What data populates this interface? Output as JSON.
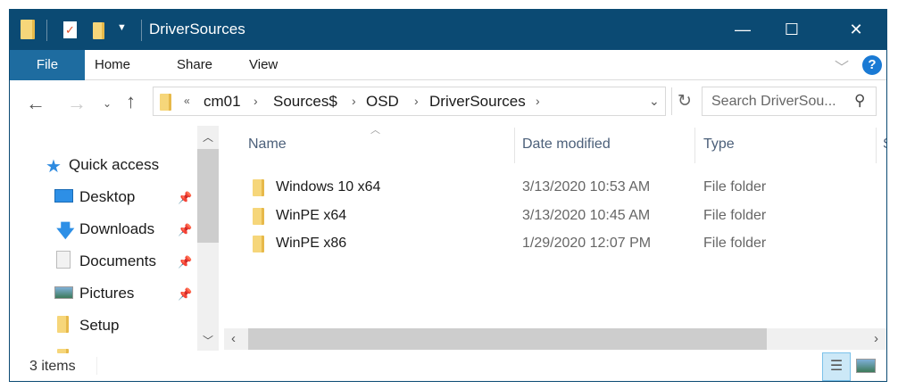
{
  "window": {
    "title": "DriverSources",
    "minimize": "—",
    "maximize": "☐",
    "close": "✕"
  },
  "ribbon": {
    "tabs": [
      "File",
      "Home",
      "Share",
      "View"
    ],
    "collapse": "﹀",
    "help": "?"
  },
  "address": {
    "overflow": "«",
    "crumbs": [
      "cm01",
      "Sources$",
      "OSD",
      "DriverSources"
    ],
    "search_placeholder": "Search DriverSou..."
  },
  "nav": {
    "quick_access": "Quick access",
    "items": [
      {
        "label": "Desktop",
        "pinned": true
      },
      {
        "label": "Downloads",
        "pinned": true
      },
      {
        "label": "Documents",
        "pinned": true
      },
      {
        "label": "Pictures",
        "pinned": true
      },
      {
        "label": "Setup",
        "pinned": false
      }
    ]
  },
  "columns": {
    "name": "Name",
    "date": "Date modified",
    "type": "Type",
    "size": "S"
  },
  "files": [
    {
      "name": "Windows 10 x64",
      "date": "3/13/2020 10:53 AM",
      "type": "File folder"
    },
    {
      "name": "WinPE x64",
      "date": "3/13/2020 10:45 AM",
      "type": "File folder"
    },
    {
      "name": "WinPE x86",
      "date": "1/29/2020 12:07 PM",
      "type": "File folder"
    }
  ],
  "status": {
    "count": "3 items"
  },
  "colors": {
    "titlebar": "#0b4a73",
    "file_tab": "#1e6ca0",
    "help": "#1a7ad4"
  }
}
